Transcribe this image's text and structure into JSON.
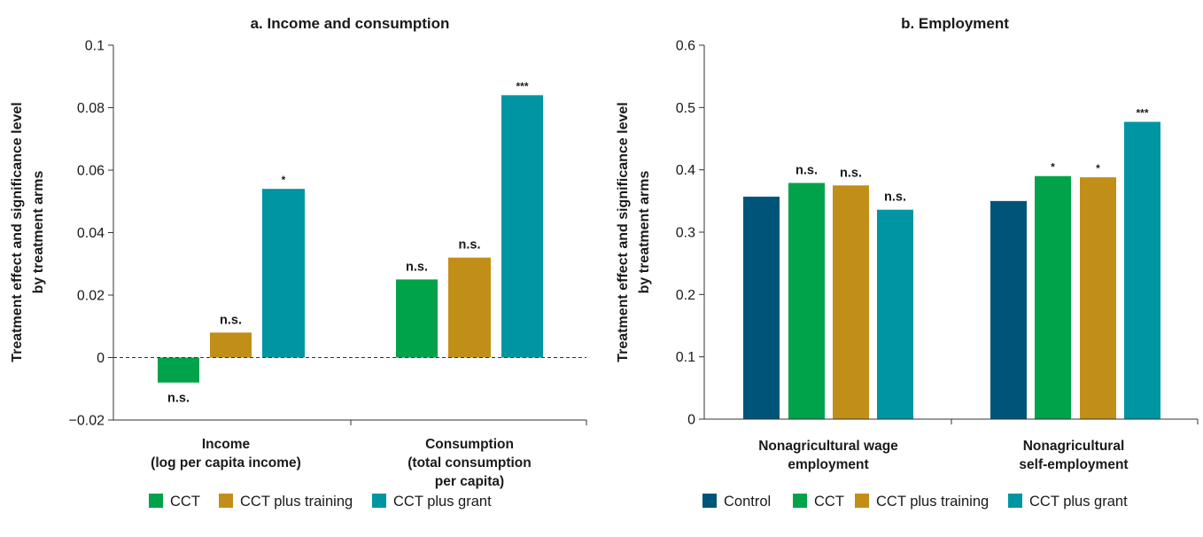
{
  "chart_data": [
    {
      "type": "bar",
      "title": "a. Income and consumption",
      "ylabel": [
        "Treatment effect and significance level",
        "by treatment arms"
      ],
      "ylim": [
        -0.02,
        0.1
      ],
      "yticks": [
        "−0.02",
        "0",
        "0.02",
        "0.04",
        "0.06",
        "0.08",
        "0.1"
      ],
      "ytick_values": [
        -0.02,
        0,
        0.02,
        0.04,
        0.06,
        0.08,
        0.1
      ],
      "categories": [
        [
          "Income",
          "(log per capita income)"
        ],
        [
          "Consumption",
          "(total consumption",
          "per capita)"
        ]
      ],
      "series": [
        {
          "name": "CCT",
          "color": "#00a34a",
          "values": [
            -0.008,
            0.025
          ],
          "labels": [
            "n.s.",
            "n.s."
          ]
        },
        {
          "name": "CCT plus training",
          "color": "#c18f17",
          "values": [
            0.008,
            0.032
          ],
          "labels": [
            "n.s.",
            "n.s."
          ]
        },
        {
          "name": "CCT plus grant",
          "color": "#0095a3",
          "values": [
            0.054,
            0.084
          ],
          "labels": [
            "*",
            "***"
          ]
        }
      ],
      "reference_line": 0,
      "legend": "bottom"
    },
    {
      "type": "bar",
      "title": "b. Employment",
      "ylabel": [
        "Treatment effect and significance level",
        "by treatment arms"
      ],
      "ylim": [
        0,
        0.6
      ],
      "yticks": [
        "0",
        "0.1",
        "0.2",
        "0.3",
        "0.4",
        "0.5",
        "0.6"
      ],
      "ytick_values": [
        0,
        0.1,
        0.2,
        0.3,
        0.4,
        0.5,
        0.6
      ],
      "categories": [
        [
          "Nonagricultural wage",
          "employment"
        ],
        [
          "Nonagricultural",
          "self-employment"
        ]
      ],
      "series": [
        {
          "name": "Control",
          "color": "#00547a",
          "values": [
            0.357,
            0.35
          ],
          "labels": [
            "",
            ""
          ]
        },
        {
          "name": "CCT",
          "color": "#00a34a",
          "values": [
            0.379,
            0.39
          ],
          "labels": [
            "n.s.",
            "*"
          ]
        },
        {
          "name": "CCT plus training",
          "color": "#c18f17",
          "values": [
            0.375,
            0.388
          ],
          "labels": [
            "n.s.",
            "*"
          ]
        },
        {
          "name": "CCT plus grant",
          "color": "#0095a3",
          "values": [
            0.336,
            0.477
          ],
          "labels": [
            "n.s.",
            "***"
          ]
        }
      ],
      "legend": "bottom"
    }
  ]
}
